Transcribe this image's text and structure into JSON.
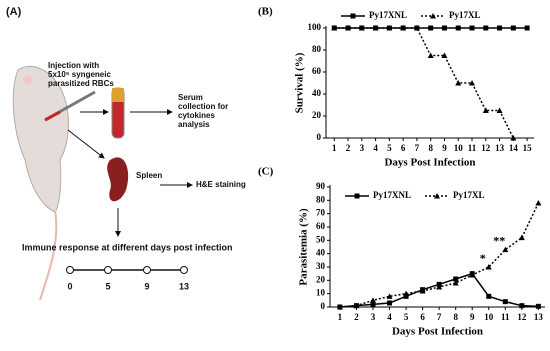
{
  "diagram": {
    "label": "(A)",
    "injection": [
      "Injection with",
      "5x10⁵ syngeneic",
      "parasitized RBCs"
    ],
    "serum": [
      "Serum",
      "collection for",
      "cytokines",
      "analysis"
    ],
    "spleen": "Spleen",
    "staining": "H&E staining",
    "immune": "Immune response at different days post infection",
    "timeline": [
      "0",
      "5",
      "9",
      "13"
    ]
  },
  "chart_data": [
    {
      "type": "line",
      "label": "(B)",
      "xlabel": "Days Post Infection",
      "ylabel": "Survival (%)",
      "x": [
        1,
        2,
        3,
        4,
        5,
        6,
        7,
        8,
        9,
        10,
        11,
        12,
        13,
        14,
        15
      ],
      "series": [
        {
          "name": "Py17XNL",
          "color": "#000000",
          "line_style": "solid",
          "marker": "square",
          "values": [
            100,
            100,
            100,
            100,
            100,
            100,
            100,
            100,
            100,
            100,
            100,
            100,
            100,
            100,
            100
          ]
        },
        {
          "name": "Py17XL",
          "color": "#000000",
          "line_style": "dotted",
          "marker": "triangle",
          "values": [
            100,
            100,
            100,
            100,
            100,
            100,
            100,
            75,
            75,
            50,
            50,
            25,
            25,
            0,
            null
          ]
        }
      ],
      "xlim": [
        0.4,
        15.5
      ],
      "xticks": [
        1,
        2,
        3,
        4,
        5,
        6,
        7,
        8,
        9,
        10,
        11,
        12,
        13,
        14,
        15
      ],
      "ylim": [
        0,
        100
      ],
      "yticks": [
        0,
        20,
        40,
        60,
        80,
        100
      ]
    },
    {
      "type": "line",
      "label": "(C)",
      "xlabel": "Days Post Infection",
      "ylabel": "Parasitemia (%)",
      "x": [
        1,
        2,
        3,
        4,
        5,
        6,
        7,
        8,
        9,
        10,
        11,
        12,
        13
      ],
      "series": [
        {
          "name": "Py17XNL",
          "color": "#000000",
          "line_style": "solid",
          "marker": "square",
          "values": [
            0,
            1,
            2,
            3,
            8,
            13,
            17,
            21,
            25,
            8,
            4,
            1,
            0.5
          ]
        },
        {
          "name": "Py17XL",
          "color": "#000000",
          "line_style": "dotted",
          "marker": "triangle",
          "values": [
            0,
            1,
            5,
            8,
            10,
            12,
            15,
            18,
            24,
            30,
            43,
            52,
            78
          ]
        }
      ],
      "annotations": [
        "*",
        "**"
      ],
      "xlim": [
        0.4,
        13.4
      ],
      "xticks": [
        1,
        2,
        3,
        4,
        5,
        6,
        7,
        8,
        9,
        10,
        11,
        12,
        13
      ],
      "ylim": [
        0,
        90
      ],
      "yticks": [
        0,
        10,
        20,
        30,
        40,
        50,
        60,
        70,
        80,
        90
      ]
    }
  ]
}
